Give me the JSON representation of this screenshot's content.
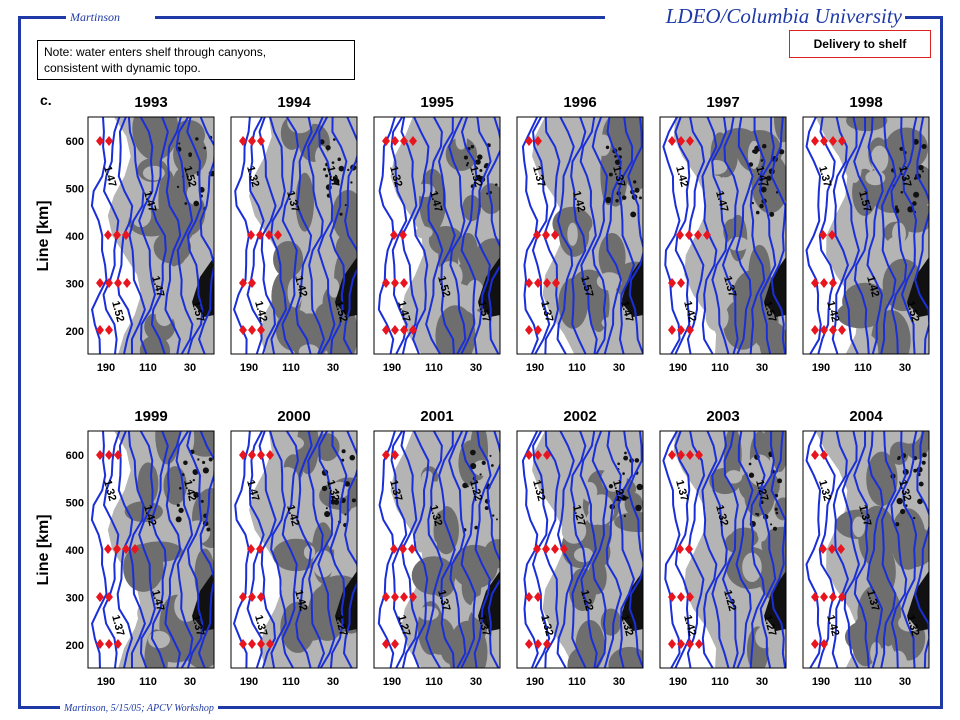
{
  "header": {
    "author": "Martinson",
    "organization": "LDEO/Columbia University"
  },
  "footer": {
    "text": "Martinson, 5/15/05; APCV Workshop"
  },
  "note": {
    "line1": "Note: water enters shelf through canyons,",
    "line2": "consistent with dynamic topo."
  },
  "badge": {
    "label": "Delivery to shelf"
  },
  "panel_letter": "c.",
  "axes": {
    "ylabel": "Line [km]",
    "yticks": [
      "600",
      "500",
      "400",
      "300",
      "200"
    ],
    "xticks": [
      "190",
      "110",
      "30"
    ]
  },
  "rows": [
    {
      "years": [
        "1993",
        "1994",
        "1995",
        "1996",
        "1997",
        "1998"
      ]
    },
    {
      "years": [
        "1999",
        "2000",
        "2001",
        "2002",
        "2003",
        "2004"
      ]
    }
  ],
  "colors": {
    "frame": "#1f3aa6",
    "contour": "#1a2fd8",
    "station": "#e8141e",
    "shelf_light": "#b4b4b4",
    "shelf_dark": "#6e6e6e",
    "land": "#111111"
  },
  "contour_labels": {
    "1993": [
      "1.47",
      "1.47",
      "1.52",
      "1.52",
      "1.47",
      "1.57"
    ],
    "1994": [
      "1.32",
      "1.37",
      "1.37",
      "1.42",
      "1.42",
      "1.52"
    ],
    "1995": [
      "1.32",
      "1.47",
      "1.52",
      "1.47",
      "1.52",
      "1.57"
    ],
    "1996": [
      "1.37",
      "1.42",
      "1.37",
      "1.37",
      "1.57",
      "1.47"
    ],
    "1997": [
      "1.42",
      "1.47",
      "1.47",
      "1.42",
      "1.37",
      "1.57"
    ],
    "1998": [
      "1.37",
      "1.57",
      "1.37",
      "1.42",
      "1.42",
      "1.52"
    ],
    "1999": [
      "1.32",
      "1.42",
      "1.42",
      "1.37",
      "1.47",
      "1.37"
    ],
    "2000": [
      "1.47",
      "1.42",
      "1.32",
      "1.37",
      "1.42",
      "1.27"
    ],
    "2001": [
      "1.37",
      "1.32",
      "1.22",
      "1.27",
      "1.37",
      "1.37"
    ],
    "2002": [
      "1.32",
      "1.27",
      "1.22",
      "1.32",
      "1.22",
      "1.32"
    ],
    "2003": [
      "1.37",
      "1.32",
      "1.27",
      "1.42",
      "1.22",
      "1.27"
    ],
    "2004": [
      "1.32",
      "1.37",
      "1.32",
      "1.42",
      "1.37",
      "1.32"
    ]
  }
}
